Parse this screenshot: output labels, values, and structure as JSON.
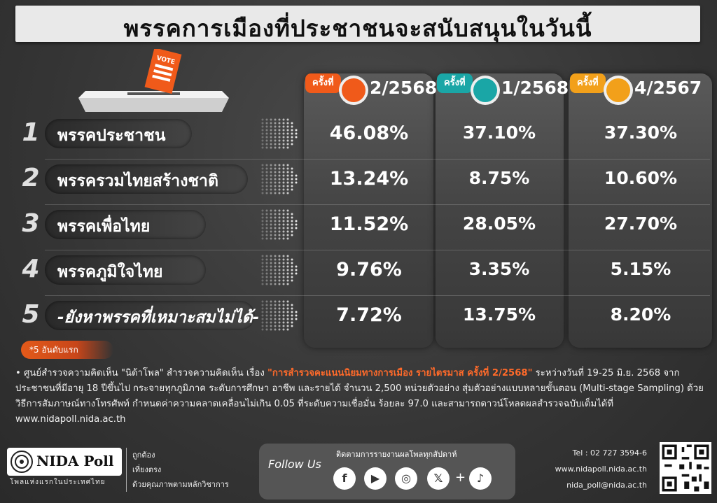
{
  "title": "พรรคการเมืองที่ประชาชนจะสนับสนุนในวันนี้",
  "ballot": {
    "vote_label": "VOTE"
  },
  "columns": [
    {
      "badge": "ครั้งที่",
      "period": "2/2568",
      "color": "#f05a1a"
    },
    {
      "badge": "ครั้งที่",
      "period": "1/2568",
      "color": "#1aa6a6"
    },
    {
      "badge": "ครั้งที่",
      "period": "4/2567",
      "color": "#f2a01a"
    }
  ],
  "rows": [
    {
      "rank": "1",
      "party": "พรรคประชาชน",
      "values": [
        "46.08%",
        "37.10%",
        "37.30%"
      ]
    },
    {
      "rank": "2",
      "party": "พรรครวมไทยสร้างชาติ",
      "values": [
        "13.24%",
        "8.75%",
        "10.60%"
      ]
    },
    {
      "rank": "3",
      "party": "พรรคเพื่อไทย",
      "values": [
        "11.52%",
        "28.05%",
        "27.70%"
      ]
    },
    {
      "rank": "4",
      "party": "พรรคภูมิใจไทย",
      "values": [
        "9.76%",
        "3.35%",
        "5.15%"
      ]
    },
    {
      "rank": "5",
      "party": "-ยังหาพรรคที่เหมาะสมไม่ได้-",
      "values": [
        "7.72%",
        "13.75%",
        "8.20%"
      ]
    }
  ],
  "top5_label": "*5 อันดับแรก",
  "note": {
    "part1": "ศูนย์สำรวจความคิดเห็น \"นิด้าโพล\" สำรวจความคิดเห็น เรื่อง ",
    "highlight": "\"การสำรวจคะแนนนิยมทางการเมือง รายไตรมาส ครั้งที่ 2/2568\"",
    "part2": " ระหว่างวันที่ 19-25 มิ.ย. 2568 จากประชาชนที่มีอายุ 18 ปีขึ้นไป  กระจายทุกภูมิภาค ระดับการศึกษา อาชีพ และรายได้ จำนวน  2,500  หน่วยตัวอย่าง สุ่มตัวอย่างแบบหลายขั้นตอน (Multi-stage Sampling) ด้วยวิธีการสัมภาษณ์ทางโทรศัพท์ กำหนดค่าความคลาดเคลื่อนไม่เกิน 0.05 ที่ระดับความเชื่อมั่น ร้อยละ 97.0 และสามารถดาวน์โหลดผลสำรวจฉบับเต็มได้ที่ www.nidapoll.nida.ac.th"
  },
  "footer": {
    "logo": "NIDA Poll",
    "logo_sub": "โพลแห่งแรกในประเทศไทย",
    "slogan": [
      "ถูกต้อง",
      "เที่ยงตรง",
      "ด้วยคุณภาพตามหลักวิชาการ"
    ],
    "follow_us": "Follow Us",
    "follow_sub": "ติดตามการรายงานผลโพลทุกสัปดาห์",
    "socials": [
      {
        "icon": "facebook-icon",
        "glyph": "f"
      },
      {
        "icon": "youtube-icon",
        "glyph": "▶"
      },
      {
        "icon": "instagram-icon",
        "glyph": "◎"
      },
      {
        "icon": "x-icon",
        "glyph": "𝕏"
      },
      {
        "icon": "tiktok-icon",
        "glyph": "♪"
      }
    ],
    "plus": "+",
    "tel": "Tel : 02 727 3594-6",
    "web": "www.nidapoll.nida.ac.th",
    "email": "nida_poll@nida.ac.th"
  },
  "chart_data": {
    "type": "table",
    "title": "พรรคการเมืองที่ประชาชนจะสนับสนุนในวันนี้",
    "categories": [
      "พรรคประชาชน",
      "พรรครวมไทยสร้างชาติ",
      "พรรคเพื่อไทย",
      "พรรคภูมิใจไทย",
      "-ยังหาพรรคที่เหมาะสมไม่ได้-"
    ],
    "series": [
      {
        "name": "2/2568",
        "values": [
          46.08,
          13.24,
          11.52,
          9.76,
          7.72
        ]
      },
      {
        "name": "1/2568",
        "values": [
          37.1,
          8.75,
          28.05,
          3.35,
          13.75
        ]
      },
      {
        "name": "4/2567",
        "values": [
          37.3,
          10.6,
          27.7,
          5.15,
          8.2
        ]
      }
    ]
  }
}
